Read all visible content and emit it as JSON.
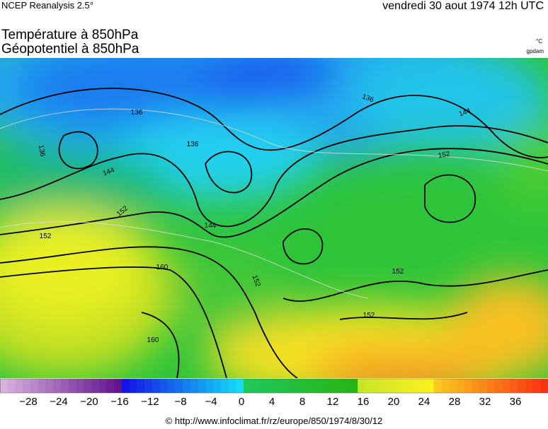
{
  "header": {
    "source": "NCEP Reanalysis 2.5°",
    "date": "vendredi 30 aout 1974 12h UTC",
    "title_temperature": "Température à 850hPa",
    "title_geopotential": "Géopotentiel à 850hPa",
    "unit_temperature": "°C",
    "unit_geopotential": "gpdam"
  },
  "map": {
    "contour_labels": [
      "136",
      "136",
      "136",
      "136",
      "144",
      "144",
      "144",
      "152",
      "152",
      "152",
      "160",
      "160",
      "152",
      "152",
      "152"
    ]
  },
  "colorbar": {
    "labels": [
      "−28",
      "−24",
      "−20",
      "−16",
      "−12",
      "−8",
      "−4",
      "0",
      "4",
      "8",
      "12",
      "16",
      "20",
      "24",
      "28",
      "32",
      "36"
    ]
  },
  "footer": {
    "credit": "© http://www.infoclimat.fr/rz/europe/850/1974/8/30/12"
  }
}
